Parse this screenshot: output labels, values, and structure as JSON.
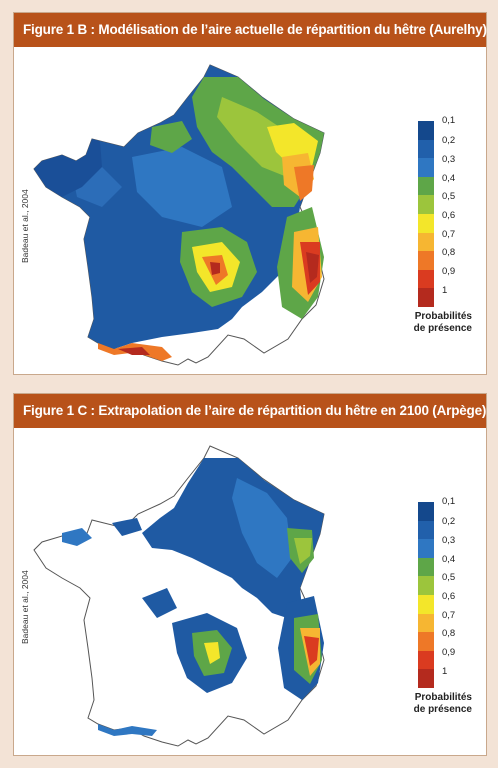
{
  "panel_b": {
    "title": "Figure 1 B : Modélisation de l’aire actuelle de répartition du hêtre (Aurelhy)",
    "credit": "Badeau et al., 2004"
  },
  "panel_c": {
    "title": "Figure 1 C : Extrapolation de l’aire de répartition du hêtre en 2100 (Arpège)",
    "credit": "Badeau et al., 2004"
  },
  "legend": {
    "ticks": [
      "0,1",
      "0,2",
      "0,3",
      "0,4",
      "0,5",
      "0,6",
      "0,7",
      "0,8",
      "0,9",
      "1"
    ],
    "colors": [
      "#14488c",
      "#2160ab",
      "#2f77c2",
      "#5ea648",
      "#9cc53c",
      "#f3e62a",
      "#f6b632",
      "#ee7827",
      "#da3b20",
      "#b42a1e"
    ],
    "title_line1": "Probabilités",
    "title_line2": "de présence"
  }
}
